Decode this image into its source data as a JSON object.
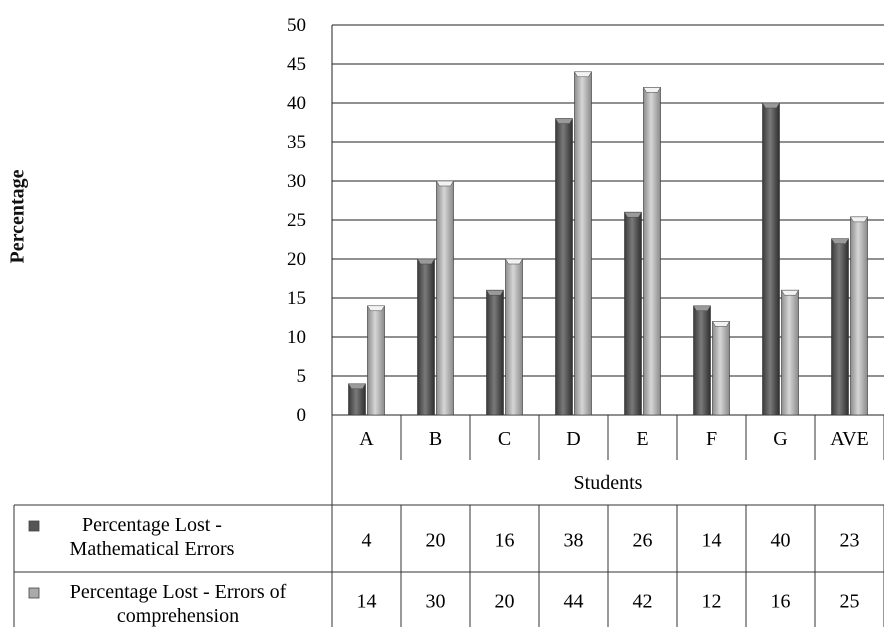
{
  "chart_data": {
    "type": "bar",
    "ylabel": "Percentage",
    "xlabel": "Students",
    "ylim": [
      0,
      50
    ],
    "yticks": [
      0,
      5,
      10,
      15,
      20,
      25,
      30,
      35,
      40,
      45,
      50
    ],
    "categories": [
      "A",
      "B",
      "C",
      "D",
      "E",
      "F",
      "G",
      "AVE"
    ],
    "series": [
      {
        "name": "Percentage Lost  - Mathematical Errors",
        "name_lines": [
          "Percentage Lost  -",
          "Mathematical Errors"
        ],
        "color": "#555555",
        "values": [
          4,
          20,
          16,
          38,
          26,
          14,
          40,
          22.6
        ],
        "table_values": [
          "4",
          "20",
          "16",
          "38",
          "26",
          "14",
          "40",
          "23"
        ]
      },
      {
        "name": "Percentage Lost  - Errors of comprehension",
        "name_lines": [
          "Percentage Lost  - Errors of",
          "comprehension"
        ],
        "color": "#aaaaaa",
        "values": [
          14,
          30,
          20,
          44,
          42,
          12,
          16,
          25.4
        ],
        "table_values": [
          "14",
          "30",
          "20",
          "44",
          "42",
          "12",
          "16",
          "25"
        ]
      }
    ],
    "grid": true,
    "legend": "data-table"
  }
}
